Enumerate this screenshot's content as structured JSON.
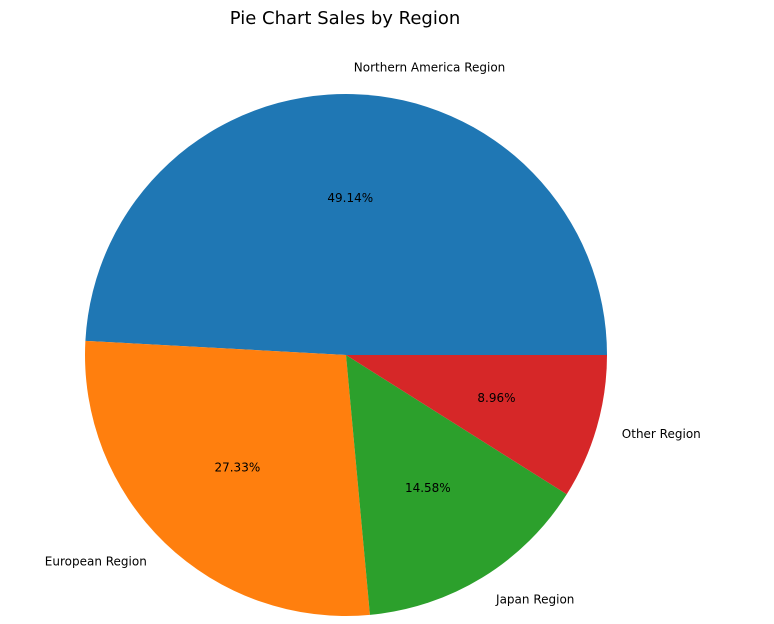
{
  "chart_data": {
    "type": "pie",
    "title": "Pie Chart Sales by Region",
    "slices": [
      {
        "label": "Northern America Region",
        "value": 49.14,
        "pct_label": "49.14%",
        "color": "#1f77b4"
      },
      {
        "label": "European Region",
        "value": 27.33,
        "pct_label": "27.33%",
        "color": "#ff7f0e"
      },
      {
        "label": "Japan Region",
        "value": 14.58,
        "pct_label": "14.58%",
        "color": "#2ca02c"
      },
      {
        "label": "Other Region",
        "value": 8.96,
        "pct_label": "8.96%",
        "color": "#d62728"
      }
    ],
    "start_angle_deg": 0,
    "direction": "counterclockwise",
    "legend": "none"
  }
}
